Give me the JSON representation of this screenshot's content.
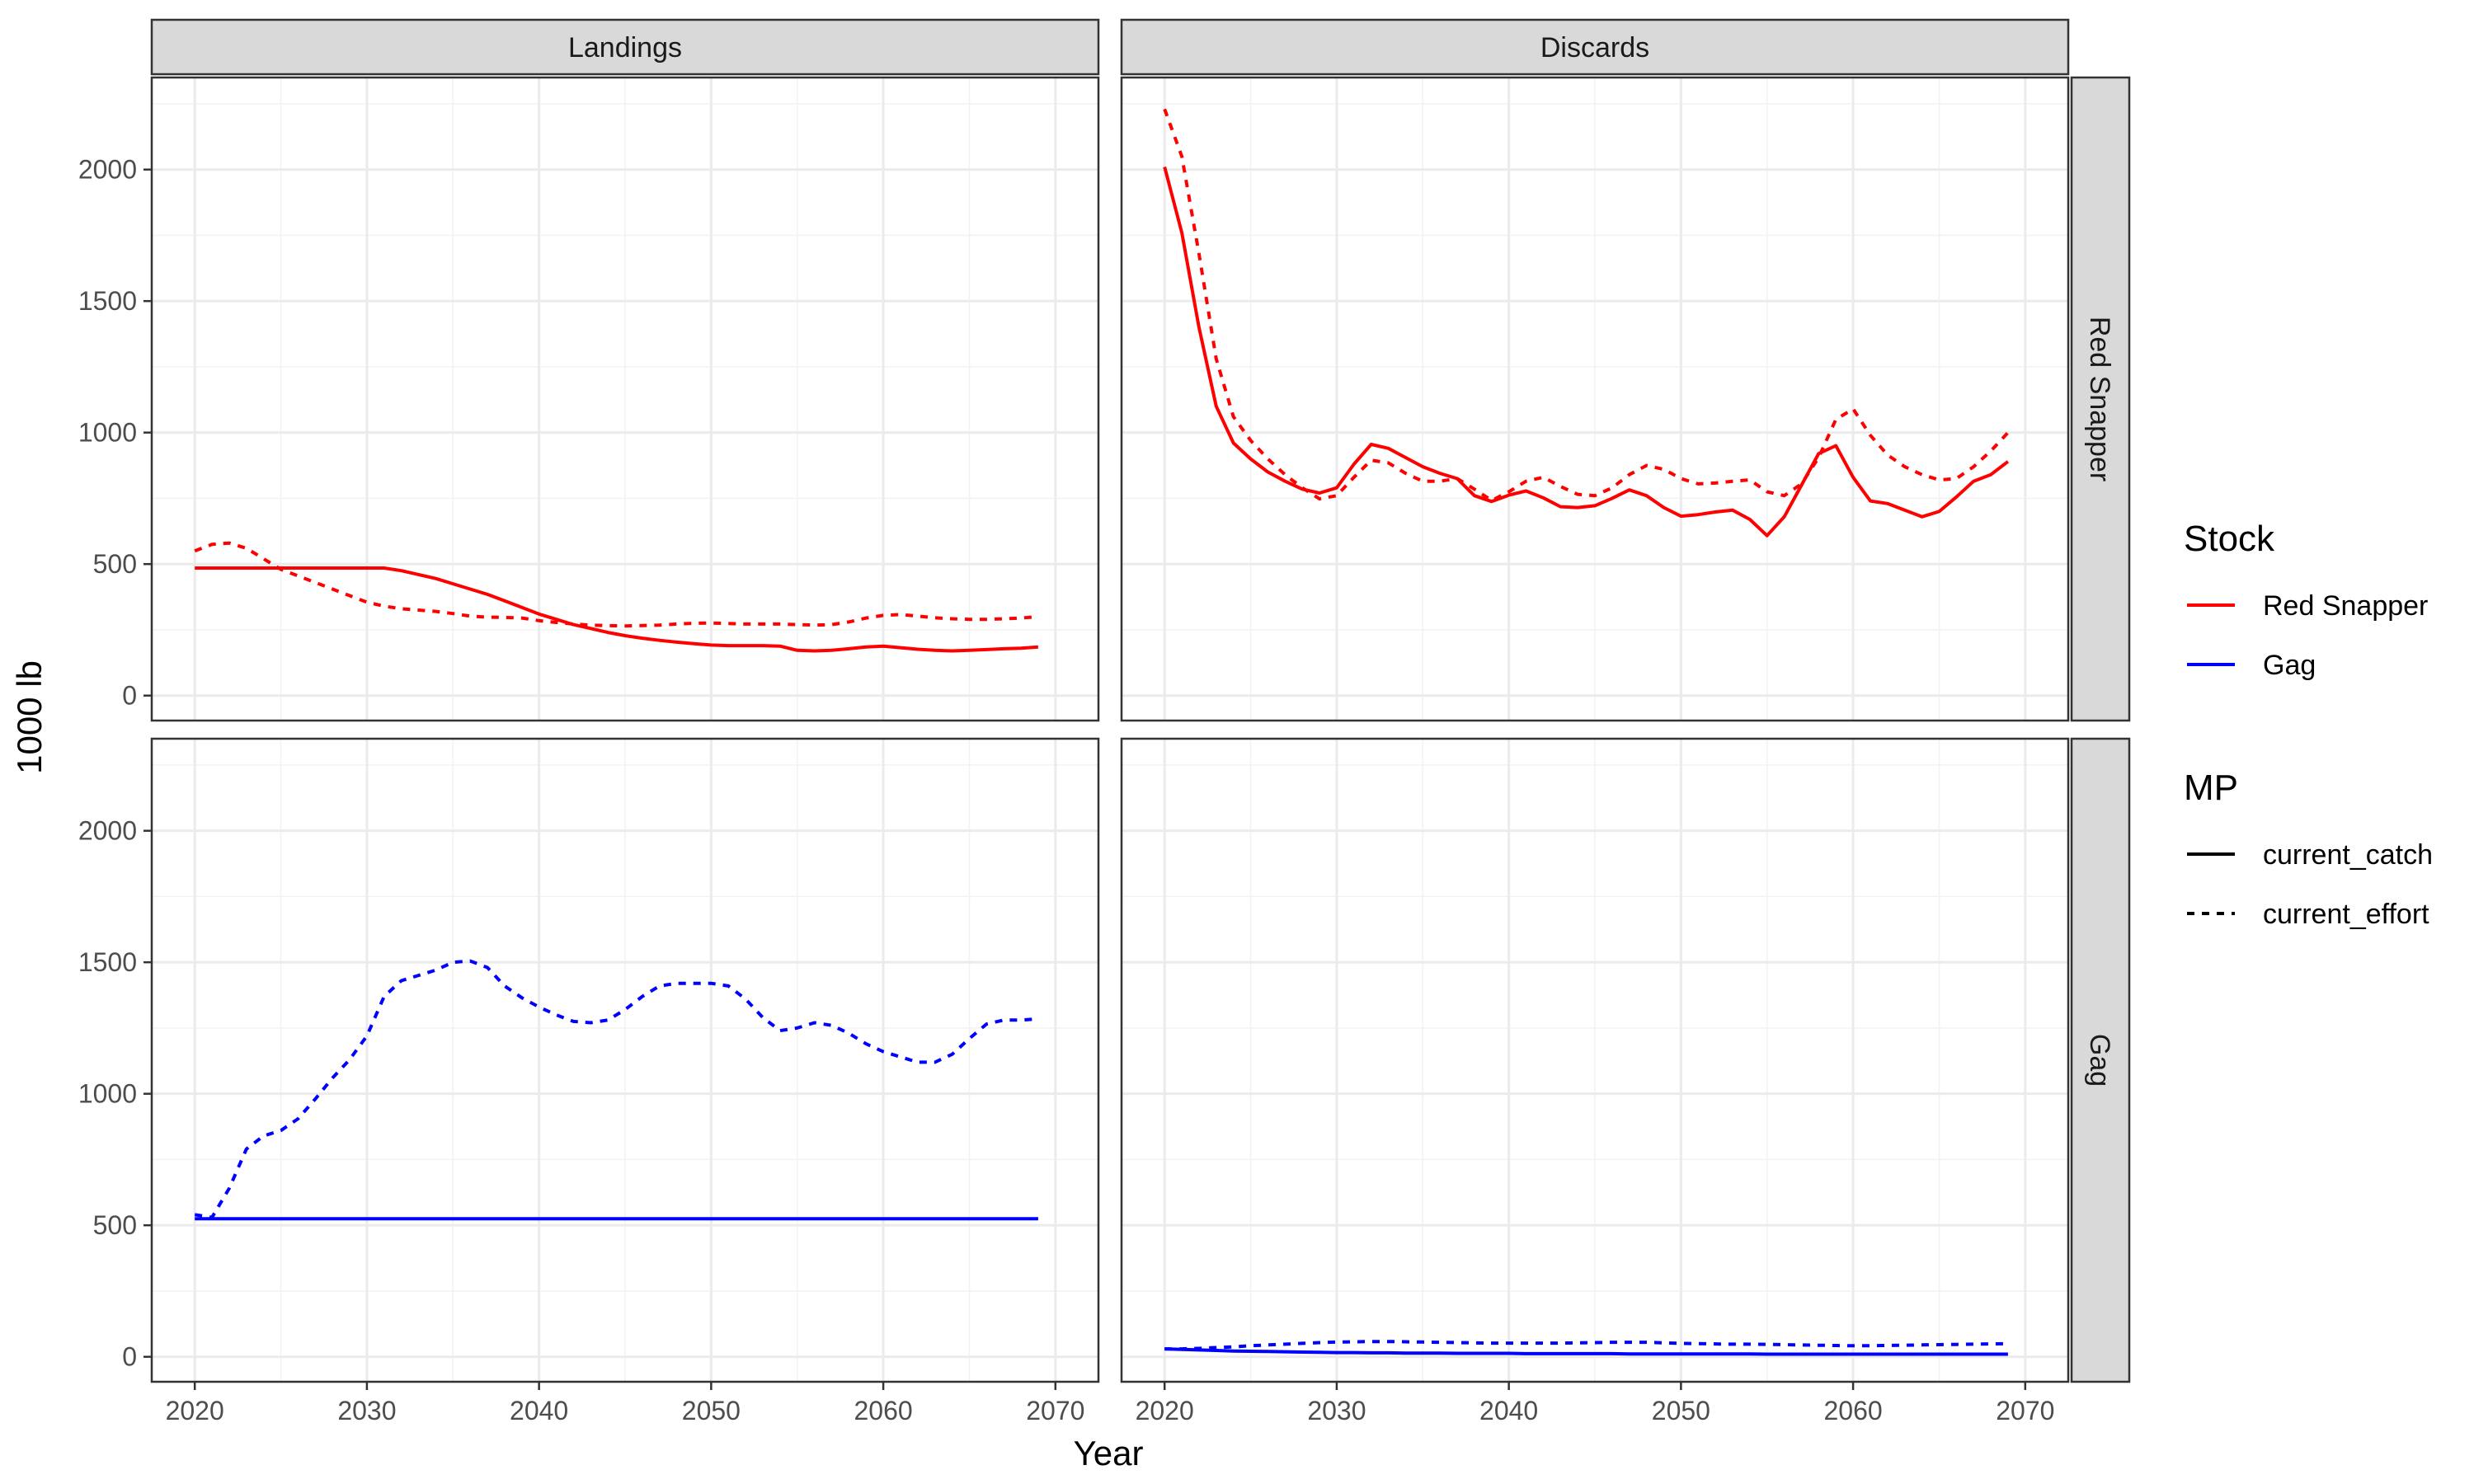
{
  "chart_data": {
    "type": "line",
    "xlabel": "Year",
    "ylabel": "1000 lb",
    "xlim": [
      2020,
      2070
    ],
    "ylim": [
      0,
      2350
    ],
    "x_ticks": [
      "2020",
      "2030",
      "2040",
      "2050",
      "2060",
      "2070"
    ],
    "y_ticks": [
      "0",
      "500",
      "1000",
      "1500",
      "2000"
    ],
    "grid": true,
    "facet_columns": [
      "Landings",
      "Discards"
    ],
    "facet_rows": [
      "Red Snapper",
      "Gag"
    ],
    "legends": [
      {
        "title": "Stock",
        "entries": [
          {
            "label": "Red Snapper",
            "color": "#FF0000"
          },
          {
            "label": "Gag",
            "color": "#0000FF"
          }
        ]
      },
      {
        "title": "MP",
        "entries": [
          {
            "label": "current_catch",
            "linetype": "solid"
          },
          {
            "label": "current_effort",
            "linetype": "dashed"
          }
        ]
      }
    ],
    "legend_position": "right",
    "x": [
      2020,
      2021,
      2022,
      2023,
      2024,
      2025,
      2026,
      2027,
      2028,
      2029,
      2030,
      2031,
      2032,
      2033,
      2034,
      2035,
      2036,
      2037,
      2038,
      2039,
      2040,
      2041,
      2042,
      2043,
      2044,
      2045,
      2046,
      2047,
      2048,
      2049,
      2050,
      2051,
      2052,
      2053,
      2054,
      2055,
      2056,
      2057,
      2058,
      2059,
      2060,
      2061,
      2062,
      2063,
      2064,
      2065,
      2066,
      2067,
      2068,
      2069
    ],
    "panels": [
      {
        "column": "Landings",
        "row": "Red Snapper",
        "series": [
          {
            "stock": "Red Snapper",
            "mp": "current_catch",
            "values": [
              485,
              485,
              485,
              485,
              485,
              485,
              485,
              485,
              485,
              485,
              485,
              485,
              475,
              460,
              445,
              425,
              405,
              385,
              360,
              335,
              310,
              290,
              270,
              255,
              240,
              228,
              218,
              210,
              203,
              197,
              192,
              190,
              190,
              190,
              188,
              172,
              170,
              172,
              178,
              185,
              188,
              182,
              176,
              172,
              170,
              172,
              175,
              178,
              180,
              185
            ]
          },
          {
            "stock": "Red Snapper",
            "mp": "current_effort",
            "values": [
              550,
              575,
              580,
              560,
              520,
              480,
              455,
              430,
              405,
              380,
              355,
              340,
              330,
              325,
              320,
              312,
              302,
              298,
              297,
              295,
              285,
              278,
              272,
              268,
              266,
              265,
              266,
              268,
              272,
              275,
              276,
              274,
              272,
              272,
              272,
              270,
              268,
              270,
              280,
              295,
              305,
              308,
              302,
              296,
              292,
              290,
              290,
              292,
              295,
              300
            ]
          }
        ]
      },
      {
        "column": "Discards",
        "row": "Red Snapper",
        "series": [
          {
            "stock": "Red Snapper",
            "mp": "current_catch",
            "values": [
              2010,
              1760,
              1400,
              1100,
              960,
              900,
              850,
              815,
              785,
              770,
              790,
              880,
              955,
              940,
              905,
              870,
              845,
              825,
              760,
              738,
              762,
              778,
              752,
              718,
              715,
              722,
              750,
              782,
              760,
              715,
              682,
              688,
              698,
              705,
              670,
              608,
              680,
              800,
              920,
              950,
              830,
              740,
              730,
              705,
              680,
              700,
              755,
              815,
              840,
              890
            ]
          },
          {
            "stock": "Red Snapper",
            "mp": "current_effort",
            "values": [
              2230,
              2050,
              1680,
              1280,
              1060,
              970,
              900,
              840,
              790,
              748,
              760,
              830,
              895,
              885,
              845,
              815,
              815,
              825,
              785,
              742,
              775,
              815,
              830,
              795,
              765,
              760,
              790,
              840,
              875,
              860,
              825,
              805,
              808,
              815,
              820,
              775,
              760,
              805,
              905,
              1050,
              1090,
              990,
              915,
              870,
              840,
              820,
              825,
              870,
              930,
              1000
            ]
          }
        ]
      },
      {
        "column": "Landings",
        "row": "Gag",
        "series": [
          {
            "stock": "Gag",
            "mp": "current_catch",
            "values": [
              525,
              525,
              525,
              525,
              525,
              525,
              525,
              525,
              525,
              525,
              525,
              525,
              525,
              525,
              525,
              525,
              525,
              525,
              525,
              525,
              525,
              525,
              525,
              525,
              525,
              525,
              525,
              525,
              525,
              525,
              525,
              525,
              525,
              525,
              525,
              525,
              525,
              525,
              525,
              525,
              525,
              525,
              525,
              525,
              525,
              525,
              525,
              525,
              525,
              525
            ]
          },
          {
            "stock": "Gag",
            "mp": "current_effort",
            "values": [
              540,
              530,
              640,
              790,
              840,
              860,
              905,
              980,
              1060,
              1130,
              1220,
              1370,
              1430,
              1450,
              1470,
              1500,
              1505,
              1480,
              1410,
              1365,
              1330,
              1300,
              1275,
              1270,
              1280,
              1320,
              1370,
              1410,
              1420,
              1420,
              1420,
              1410,
              1360,
              1290,
              1240,
              1250,
              1270,
              1260,
              1230,
              1190,
              1160,
              1140,
              1120,
              1120,
              1150,
              1210,
              1265,
              1280,
              1280,
              1285
            ]
          }
        ]
      },
      {
        "column": "Discards",
        "row": "Gag",
        "series": [
          {
            "stock": "Gag",
            "mp": "current_catch",
            "values": [
              30,
              28,
              26,
              24,
              22,
              21,
              20,
              19,
              18,
              17,
              16,
              16,
              15,
              15,
              14,
              14,
              14,
              13,
              13,
              13,
              13,
              12,
              12,
              12,
              12,
              12,
              12,
              11,
              11,
              11,
              11,
              11,
              11,
              11,
              11,
              10,
              10,
              10,
              10,
              10,
              10,
              10,
              10,
              10,
              10,
              10,
              10,
              10,
              10,
              10
            ]
          },
          {
            "stock": "Gag",
            "mp": "current_effort",
            "values": [
              30,
              30,
              32,
              35,
              38,
              42,
              45,
              48,
              51,
              54,
              56,
              57,
              58,
              58,
              57,
              56,
              55,
              54,
              53,
              52,
              52,
              52,
              52,
              52,
              53,
              54,
              55,
              55,
              55,
              53,
              51,
              50,
              49,
              48,
              48,
              47,
              46,
              45,
              44,
              43,
              42,
              42,
              43,
              44,
              45,
              46,
              47,
              48,
              49,
              50
            ]
          }
        ]
      }
    ]
  }
}
